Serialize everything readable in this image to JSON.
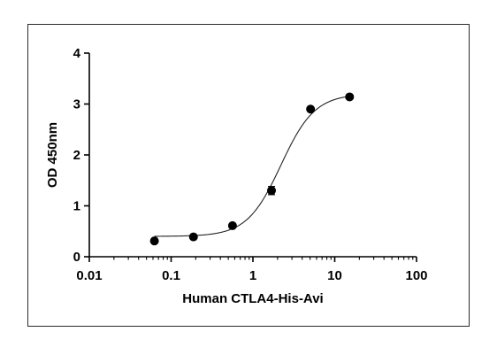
{
  "chart_data": {
    "type": "scatter",
    "title": "",
    "xlabel": "Human CTLA4-His-Avi",
    "ylabel": "OD 450nm",
    "x_scale": "log",
    "xlim": [
      0.01,
      100
    ],
    "ylim": [
      0,
      4
    ],
    "x_ticks": [
      0.01,
      0.1,
      1,
      10,
      100
    ],
    "x_tick_labels": [
      "0.01",
      "0.1",
      "1",
      "10",
      "100"
    ],
    "y_ticks": [
      0,
      1,
      2,
      3,
      4
    ],
    "y_tick_labels": [
      "0",
      "1",
      "2",
      "3",
      "4"
    ],
    "grid": false,
    "legend": "none",
    "series": [
      {
        "x": [
          0.0625,
          0.1875,
          0.5625,
          1.6875,
          5.0625,
          15.1875
        ],
        "y": [
          0.31,
          0.39,
          0.61,
          1.3,
          2.9,
          3.14
        ],
        "error": [
          0.02,
          0.02,
          0.03,
          0.08,
          0.03,
          0.03
        ]
      }
    ],
    "fit_curve": {
      "type": "4PL",
      "bottom": 0.4,
      "top": 3.2,
      "ec50": 2.2,
      "hill": 2.1
    },
    "colors": {
      "marker": "#000000",
      "curve": "#222222",
      "axis": "#000000"
    }
  }
}
